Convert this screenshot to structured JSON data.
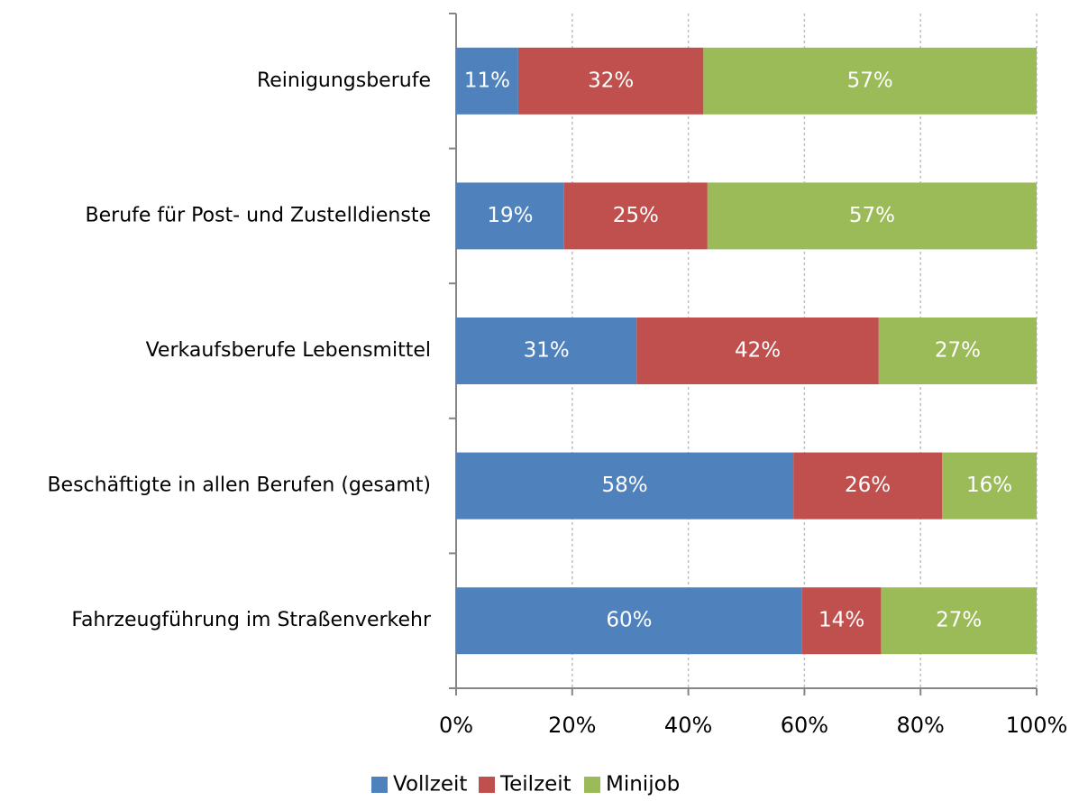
{
  "chart_data": {
    "type": "stacked-bar-horizontal",
    "categories": [
      "Reinigungsberufe",
      "Berufe für Post- und Zustelldienste",
      "Verkaufsberufe Lebensmittel",
      "Beschäftigte in allen Berufen (gesamt)",
      "Fahrzeugführung  im Straßenverkehr"
    ],
    "series": [
      {
        "name": "Vollzeit",
        "color": "#4f81bd",
        "values": [
          10.7,
          18.6,
          31.1,
          58.1,
          59.6
        ],
        "value_labels": [
          "11%",
          "19%",
          "31%",
          "58%",
          "60%"
        ]
      },
      {
        "name": "Teilzeit",
        "color": "#c0504d",
        "values": [
          31.9,
          24.7,
          41.7,
          25.6,
          13.6
        ],
        "value_labels": [
          "32%",
          "25%",
          "42%",
          "26%",
          "14%"
        ]
      },
      {
        "name": "Minijob",
        "color": "#9bbb59",
        "values": [
          57.4,
          56.7,
          27.2,
          16.3,
          26.8
        ],
        "value_labels": [
          "57%",
          "57%",
          "27%",
          "16%",
          "27%"
        ]
      }
    ],
    "xlim": [
      0,
      100
    ],
    "xticks": [
      {
        "value": 0,
        "label": "0%"
      },
      {
        "value": 20,
        "label": "20%"
      },
      {
        "value": 40,
        "label": "40%"
      },
      {
        "value": 60,
        "label": "60%"
      },
      {
        "value": 80,
        "label": "80%"
      },
      {
        "value": 100,
        "label": "100%"
      }
    ],
    "grid": true,
    "legend": "bottom"
  }
}
